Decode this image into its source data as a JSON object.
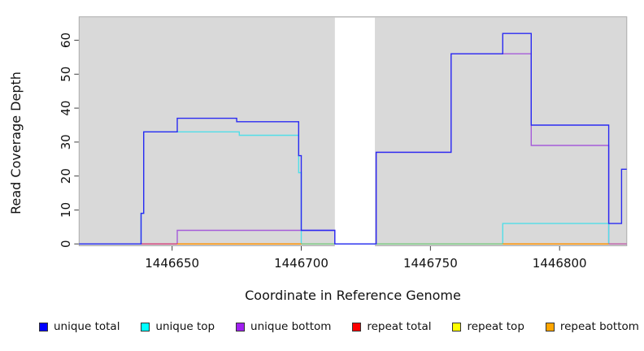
{
  "axes": {
    "x_title": "Coordinate in Reference Genome",
    "y_title": "Read Coverage Depth"
  },
  "legend": [
    {
      "label": "unique total",
      "color": "#0000ff"
    },
    {
      "label": "unique top",
      "color": "#00ffff"
    },
    {
      "label": "unique bottom",
      "color": "#a020f0"
    },
    {
      "label": "repeat total",
      "color": "#ff0000"
    },
    {
      "label": "repeat top",
      "color": "#ffff00"
    },
    {
      "label": "repeat bottom",
      "color": "#ffa500"
    }
  ],
  "chart_data": {
    "type": "line",
    "title": "",
    "xlabel": "Coordinate in Reference Genome",
    "ylabel": "Read Coverage Depth",
    "xlim": [
      1446614,
      1446826
    ],
    "ylim": [
      -0.55,
      66.9
    ],
    "x_ticks": [
      1446650,
      1446700,
      1446750,
      1446800
    ],
    "y_ticks": [
      0,
      10,
      20,
      30,
      40,
      50,
      60
    ],
    "plot_background": "#d9d9d9",
    "plot_border": "#ababab",
    "masked_region": {
      "x1": 1446713,
      "x2": 1446728.5
    },
    "grid": "off",
    "legend_position": "bottom",
    "series": [
      {
        "name": "unique total",
        "line_color": "#2a2af2",
        "points": [
          [
            1446614,
            0
          ],
          [
            1446638,
            0
          ],
          [
            1446638,
            9
          ],
          [
            1446639,
            9
          ],
          [
            1446639,
            33
          ],
          [
            1446652,
            33
          ],
          [
            1446652,
            37
          ],
          [
            1446675,
            37
          ],
          [
            1446675,
            36
          ],
          [
            1446699,
            36
          ],
          [
            1446699,
            26
          ],
          [
            1446700,
            26
          ],
          [
            1446700,
            4
          ],
          [
            1446713,
            4
          ],
          [
            1446713,
            0
          ],
          [
            1446729,
            0
          ],
          [
            1446729,
            27
          ],
          [
            1446758,
            27
          ],
          [
            1446758,
            56
          ],
          [
            1446778,
            56
          ],
          [
            1446778,
            62
          ],
          [
            1446789,
            62
          ],
          [
            1446789,
            35
          ],
          [
            1446819,
            35
          ],
          [
            1446819,
            6
          ],
          [
            1446824,
            6
          ],
          [
            1446824,
            22
          ],
          [
            1446826,
            22
          ]
        ]
      },
      {
        "name": "unique top",
        "line_color": "#52dee8",
        "points": [
          [
            1446614,
            0
          ],
          [
            1446638,
            0
          ],
          [
            1446638,
            9
          ],
          [
            1446639,
            9
          ],
          [
            1446639,
            33
          ],
          [
            1446676,
            33
          ],
          [
            1446676,
            32
          ],
          [
            1446699,
            32
          ],
          [
            1446699,
            21
          ],
          [
            1446700,
            21
          ],
          [
            1446700,
            0
          ],
          [
            1446778,
            0
          ],
          [
            1446778,
            6
          ],
          [
            1446819,
            6
          ],
          [
            1446819,
            0
          ],
          [
            1446826,
            0
          ]
        ]
      },
      {
        "name": "unique bottom",
        "line_color": "#a55cd9",
        "points": [
          [
            1446614,
            0
          ],
          [
            1446652,
            0
          ],
          [
            1446652,
            4
          ],
          [
            1446713,
            4
          ],
          [
            1446713,
            0
          ],
          [
            1446729,
            0
          ],
          [
            1446729,
            27
          ],
          [
            1446758,
            27
          ],
          [
            1446758,
            56
          ],
          [
            1446789,
            56
          ],
          [
            1446789,
            29
          ],
          [
            1446819,
            29
          ],
          [
            1446819,
            0
          ],
          [
            1446826,
            0
          ]
        ]
      },
      {
        "name": "repeat total",
        "line_color": "#d6447a",
        "points": [
          [
            1446614,
            0
          ],
          [
            1446826,
            0
          ]
        ]
      },
      {
        "name": "repeat top",
        "line_color": "#e8e84a",
        "points": [
          [
            1446614,
            0
          ],
          [
            1446826,
            0
          ]
        ]
      },
      {
        "name": "repeat bottom",
        "line_color": "#ff9100",
        "points": [
          [
            1446614,
            0
          ],
          [
            1446826,
            0
          ]
        ]
      }
    ],
    "zero_overlays": [
      {
        "x1": 1446638,
        "x2": 1446652,
        "color": "#d6447a"
      },
      {
        "x1": 1446652,
        "x2": 1446700,
        "color": "#ff9100"
      },
      {
        "x1": 1446700,
        "x2": 1446713,
        "color": "#7fc97f"
      },
      {
        "x1": 1446729,
        "x2": 1446778,
        "color": "#7fc97f"
      },
      {
        "x1": 1446778,
        "x2": 1446819,
        "color": "#ff9100"
      },
      {
        "x1": 1446819,
        "x2": 1446826,
        "color": "#c65ba5"
      }
    ]
  }
}
